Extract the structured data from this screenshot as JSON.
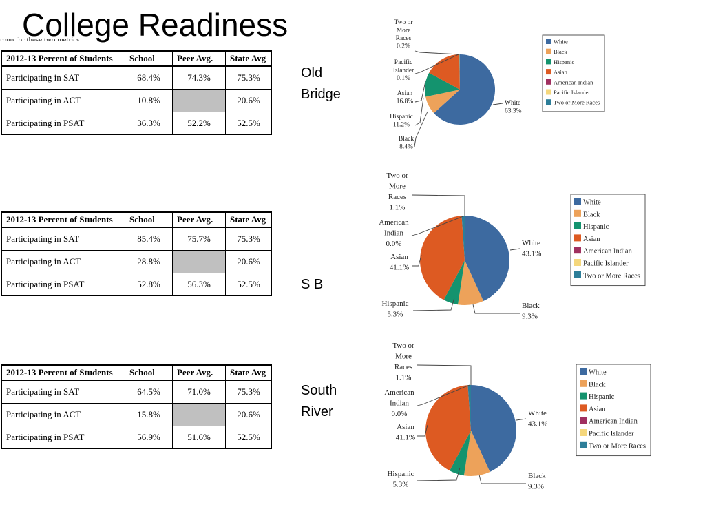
{
  "slide": {
    "title": "College Readiness",
    "cut_text": "roup for these two metrics"
  },
  "table_header": {
    "col_label": "2012-13 Percent of Students",
    "col_school": "School",
    "col_peer": "Peer Avg.",
    "col_state": "State Avg"
  },
  "tables": [
    {
      "school_label": "Old\nBridge",
      "rows": [
        {
          "label": "Participating in SAT",
          "school": "68.4%",
          "peer": "74.3%",
          "state": "75.3%"
        },
        {
          "label": "Participating in ACT",
          "school": "10.8%",
          "peer": "",
          "state": "20.6%"
        },
        {
          "label": "Participating in PSAT",
          "school": "36.3%",
          "peer": "52.2%",
          "state": "52.5%"
        }
      ]
    },
    {
      "school_label": "S B",
      "rows": [
        {
          "label": "Participating in SAT",
          "school": "85.4%",
          "peer": "75.7%",
          "state": "75.3%"
        },
        {
          "label": "Participating in ACT",
          "school": "28.8%",
          "peer": "",
          "state": "20.6%"
        },
        {
          "label": "Participating in PSAT",
          "school": "52.8%",
          "peer": "56.3%",
          "state": "52.5%"
        }
      ]
    },
    {
      "school_label": "South\nRiver",
      "rows": [
        {
          "label": "Participating in SAT",
          "school": "64.5%",
          "peer": "71.0%",
          "state": "75.3%"
        },
        {
          "label": "Participating in ACT",
          "school": "15.8%",
          "peer": "",
          "state": "20.6%"
        },
        {
          "label": "Participating in PSAT",
          "school": "56.9%",
          "peer": "51.6%",
          "state": "52.5%"
        }
      ]
    }
  ],
  "legend_colors": {
    "White": "#3d6aa0",
    "Black": "#eda25a",
    "Hispanic": "#14936e",
    "Asian": "#dd5a22",
    "American Indian": "#a03060",
    "Pacific Islander": "#f5d77c",
    "Two or More Races": "#2d7e99"
  },
  "chart_data": [
    {
      "type": "pie",
      "legend": [
        "White",
        "Black",
        "Hispanic",
        "Asian",
        "American Indian",
        "Pacific Islander",
        "Two or More Races"
      ],
      "slices": [
        {
          "name": "White",
          "value": 63.3,
          "label": [
            "White",
            "63.3%"
          ]
        },
        {
          "name": "Black",
          "value": 8.4,
          "label": [
            "Black",
            "8.4%"
          ]
        },
        {
          "name": "Hispanic",
          "value": 11.2,
          "label": [
            "Hispanic",
            "11.2%"
          ]
        },
        {
          "name": "Asian",
          "value": 16.8,
          "label": [
            "Asian",
            "16.8%"
          ]
        },
        {
          "name": "Pacific Islander",
          "value": 0.1,
          "label": [
            "Pacific",
            "Islander",
            "0.1%"
          ]
        },
        {
          "name": "Two or More Races",
          "value": 0.2,
          "label": [
            "Two or",
            "More",
            "Races",
            "0.2%"
          ]
        }
      ]
    },
    {
      "type": "pie",
      "legend": [
        "White",
        "Black",
        "Hispanic",
        "Asian",
        "American Indian",
        "Pacific Islander",
        "Two or More Races"
      ],
      "slices": [
        {
          "name": "White",
          "value": 43.1,
          "label": [
            "White",
            "43.1%"
          ]
        },
        {
          "name": "Black",
          "value": 9.3,
          "label": [
            "Black",
            "9.3%"
          ]
        },
        {
          "name": "Hispanic",
          "value": 5.3,
          "label": [
            "Hispanic",
            "5.3%"
          ]
        },
        {
          "name": "Asian",
          "value": 41.1,
          "label": [
            "Asian",
            "41.1%"
          ]
        },
        {
          "name": "American Indian",
          "value": 0.0,
          "label": [
            "American",
            "Indian",
            "0.0%"
          ]
        },
        {
          "name": "Two or More Races",
          "value": 1.1,
          "label": [
            "Two or",
            "More",
            "Races",
            "1.1%"
          ]
        }
      ]
    },
    {
      "type": "pie",
      "legend": [
        "White",
        "Black",
        "Hispanic",
        "Asian",
        "American Indian",
        "Pacific Islander",
        "Two or More Races"
      ],
      "slices": [
        {
          "name": "White",
          "value": 43.1,
          "label": [
            "White",
            "43.1%"
          ]
        },
        {
          "name": "Black",
          "value": 9.3,
          "label": [
            "Black",
            "9.3%"
          ]
        },
        {
          "name": "Hispanic",
          "value": 5.3,
          "label": [
            "Hispanic",
            "5.3%"
          ]
        },
        {
          "name": "Asian",
          "value": 41.1,
          "label": [
            "Asian",
            "41.1%"
          ]
        },
        {
          "name": "American Indian",
          "value": 0.0,
          "label": [
            "American",
            "Indian",
            "0.0%"
          ]
        },
        {
          "name": "Two or More Races",
          "value": 1.1,
          "label": [
            "Two or",
            "More",
            "Races",
            "1.1%"
          ]
        }
      ]
    }
  ]
}
